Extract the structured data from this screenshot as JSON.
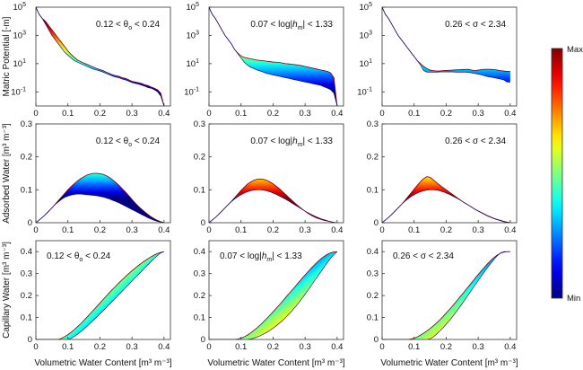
{
  "chart_data": {
    "type": "area",
    "layout": {
      "rows": 3,
      "cols": 3
    },
    "row_ylabels": [
      "Matric Potential [-m]",
      "Adsorbed Water [m³ m⁻³]",
      "Capillary Water [m³ m⁻³]"
    ],
    "col_annotations": [
      "0.12 < θo < 0.24",
      "0.07 < log|hm| < 1.33",
      "0.26 < σ < 2.34"
    ],
    "xlabel": "Volumetric Water Content [m³ m⁻³]",
    "xlim": [
      0,
      0.42
    ],
    "xticks": [
      "0",
      "0.1",
      "0.2",
      "0.3",
      "0.4"
    ],
    "row_ylims": [
      [
        0.01,
        100000
      ],
      [
        0,
        0.3
      ],
      [
        0,
        0.45
      ]
    ],
    "row_yscale": [
      "log",
      "linear",
      "linear"
    ],
    "row_yticks": [
      [
        "10^5",
        "10^3",
        "10^1",
        "10^-1"
      ],
      [
        "0",
        "0.1",
        "0.2",
        "0.3"
      ],
      [
        "0",
        "0.1",
        "0.2",
        "0.3",
        "0.4"
      ]
    ],
    "colorbar": {
      "max_label": "Max",
      "min_label": "Min",
      "colormap": "jet"
    },
    "x": [
      0.0,
      0.01,
      0.02,
      0.03,
      0.04,
      0.05,
      0.06,
      0.07,
      0.08,
      0.09,
      0.1,
      0.11,
      0.12,
      0.13,
      0.14,
      0.15,
      0.16,
      0.17,
      0.18,
      0.19,
      0.2,
      0.21,
      0.22,
      0.23,
      0.24,
      0.25,
      0.26,
      0.27,
      0.28,
      0.29,
      0.3,
      0.31,
      0.32,
      0.33,
      0.34,
      0.35,
      0.36,
      0.37,
      0.38,
      0.39,
      0.4
    ],
    "panels": [
      {
        "row": 0,
        "col": 0,
        "annotation_index": 0,
        "scale": "log",
        "curve_min": [
          100000,
          31623,
          15849,
          6310,
          2512,
          1000,
          501,
          251,
          126,
          63,
          40,
          25,
          16,
          12.6,
          10.0,
          8.0,
          6.3,
          5.0,
          4.0,
          3.5,
          3.0,
          2.5,
          2.0,
          1.6,
          1.3,
          1.1,
          1.0,
          0.8,
          0.7,
          0.56,
          0.45,
          0.4,
          0.35,
          0.3,
          0.25,
          0.2,
          0.18,
          0.14,
          0.1,
          0.05,
          0.01
        ],
        "curve_max": [
          100000,
          31623,
          15849,
          10000,
          5012,
          2512,
          1259,
          631,
          316,
          158,
          79,
          45,
          28,
          18,
          14,
          11,
          8.9,
          7.1,
          5.6,
          4.5,
          3.8,
          3.2,
          2.5,
          2.0,
          1.6,
          1.4,
          1.26,
          1.0,
          0.9,
          0.71,
          0.56,
          0.5,
          0.45,
          0.4,
          0.32,
          0.28,
          0.22,
          0.18,
          0.14,
          0.08,
          0.01
        ]
      },
      {
        "row": 0,
        "col": 1,
        "annotation_index": 1,
        "scale": "log",
        "curve_min": [
          100000,
          31623,
          15849,
          6310,
          2512,
          1000,
          501,
          251,
          100,
          50,
          25,
          12.6,
          7.9,
          5.6,
          4.5,
          3.5,
          3.0,
          2.5,
          2.0,
          1.78,
          1.58,
          1.41,
          1.26,
          1.12,
          1.0,
          0.89,
          0.79,
          0.71,
          0.63,
          0.56,
          0.5,
          0.45,
          0.4,
          0.35,
          0.32,
          0.28,
          0.22,
          0.18,
          0.14,
          0.08,
          0.01
        ],
        "curve_max": [
          100000,
          31623,
          15849,
          6310,
          2512,
          1000,
          501,
          251,
          100,
          56,
          35,
          28,
          25,
          22,
          20,
          18,
          17,
          16,
          15,
          14,
          13,
          12.6,
          12,
          11,
          10,
          9.5,
          8.9,
          8.4,
          7.9,
          7.1,
          6.3,
          5.6,
          5.0,
          4.5,
          4.0,
          3.5,
          3.2,
          2.8,
          2.2,
          1.0,
          0.01
        ]
      },
      {
        "row": 0,
        "col": 2,
        "annotation_index": 2,
        "scale": "log",
        "curve_min": [
          100000,
          31623,
          15849,
          6310,
          2512,
          1000,
          501,
          251,
          126,
          63,
          32,
          16,
          7.9,
          3.2,
          2.5,
          2.5,
          2.5,
          2.5,
          2.6,
          2.6,
          2.6,
          2.6,
          2.6,
          2.5,
          2.5,
          2.5,
          2.5,
          2.4,
          2.2,
          2.0,
          1.8,
          1.6,
          1.4,
          1.2,
          1.1,
          1.0,
          0.9,
          0.8,
          0.7,
          0.5,
          0.5
        ],
        "curve_max": [
          100000,
          31623,
          15849,
          6310,
          2512,
          1000,
          501,
          251,
          126,
          63,
          32,
          16,
          10,
          6.3,
          4.5,
          3.5,
          3.2,
          3.0,
          3.0,
          3.2,
          3.3,
          3.4,
          3.5,
          3.6,
          3.7,
          3.8,
          3.9,
          4.0,
          3.5,
          3.2,
          3.5,
          3.8,
          4.0,
          4.0,
          4.0,
          3.8,
          3.5,
          3.2,
          3.0,
          2.8,
          2.8
        ]
      },
      {
        "row": 1,
        "col": 0,
        "annotation_index": 0,
        "scale": "linear",
        "curve_min": [
          0,
          0.008,
          0.016,
          0.025,
          0.035,
          0.045,
          0.055,
          0.063,
          0.071,
          0.077,
          0.081,
          0.084,
          0.086,
          0.087,
          0.087,
          0.086,
          0.085,
          0.084,
          0.083,
          0.082,
          0.08,
          0.078,
          0.075,
          0.072,
          0.068,
          0.064,
          0.06,
          0.055,
          0.05,
          0.045,
          0.04,
          0.035,
          0.03,
          0.025,
          0.02,
          0.015,
          0.011,
          0.007,
          0.004,
          0.002,
          0
        ],
        "curve_max": [
          0,
          0.008,
          0.016,
          0.025,
          0.035,
          0.045,
          0.056,
          0.067,
          0.078,
          0.089,
          0.1,
          0.11,
          0.119,
          0.127,
          0.134,
          0.14,
          0.145,
          0.148,
          0.15,
          0.15,
          0.149,
          0.147,
          0.143,
          0.137,
          0.13,
          0.122,
          0.113,
          0.103,
          0.093,
          0.082,
          0.071,
          0.06,
          0.05,
          0.041,
          0.033,
          0.025,
          0.018,
          0.012,
          0.007,
          0.003,
          0
        ]
      },
      {
        "row": 1,
        "col": 1,
        "annotation_index": 1,
        "scale": "linear",
        "curve_min": [
          0,
          0.008,
          0.016,
          0.025,
          0.035,
          0.045,
          0.055,
          0.064,
          0.072,
          0.079,
          0.085,
          0.09,
          0.094,
          0.097,
          0.099,
          0.1,
          0.1,
          0.099,
          0.097,
          0.094,
          0.09,
          0.086,
          0.081,
          0.076,
          0.071,
          0.065,
          0.059,
          0.053,
          0.047,
          0.041,
          0.035,
          0.03,
          0.025,
          0.02,
          0.016,
          0.012,
          0.009,
          0.006,
          0.003,
          0.001,
          0
        ],
        "curve_max": [
          0,
          0.008,
          0.016,
          0.025,
          0.035,
          0.045,
          0.055,
          0.065,
          0.076,
          0.087,
          0.098,
          0.108,
          0.117,
          0.124,
          0.129,
          0.132,
          0.133,
          0.132,
          0.129,
          0.124,
          0.118,
          0.111,
          0.103,
          0.094,
          0.085,
          0.076,
          0.067,
          0.058,
          0.05,
          0.042,
          0.035,
          0.028,
          0.022,
          0.017,
          0.013,
          0.01,
          0.007,
          0.005,
          0.003,
          0.001,
          0
        ]
      },
      {
        "row": 1,
        "col": 2,
        "annotation_index": 2,
        "scale": "linear",
        "curve_min": [
          0,
          0.008,
          0.016,
          0.025,
          0.035,
          0.045,
          0.055,
          0.064,
          0.072,
          0.079,
          0.085,
          0.09,
          0.094,
          0.097,
          0.099,
          0.1,
          0.1,
          0.099,
          0.097,
          0.094,
          0.09,
          0.086,
          0.081,
          0.076,
          0.071,
          0.065,
          0.059,
          0.053,
          0.047,
          0.041,
          0.035,
          0.03,
          0.025,
          0.02,
          0.016,
          0.012,
          0.009,
          0.006,
          0.003,
          0.001,
          0
        ],
        "curve_max": [
          0,
          0.008,
          0.016,
          0.025,
          0.035,
          0.045,
          0.055,
          0.066,
          0.078,
          0.09,
          0.102,
          0.114,
          0.125,
          0.134,
          0.14,
          0.138,
          0.13,
          0.122,
          0.114,
          0.107,
          0.1,
          0.093,
          0.086,
          0.079,
          0.072,
          0.065,
          0.059,
          0.053,
          0.047,
          0.041,
          0.036,
          0.031,
          0.026,
          0.021,
          0.017,
          0.013,
          0.01,
          0.007,
          0.004,
          0.002,
          0
        ]
      },
      {
        "row": 2,
        "col": 0,
        "annotation_index": 0,
        "scale": "linear",
        "curve_min": [
          0,
          0,
          0,
          0,
          0,
          0,
          0,
          0,
          0,
          0,
          0,
          0.005,
          0.014,
          0.024,
          0.035,
          0.047,
          0.06,
          0.074,
          0.088,
          0.102,
          0.117,
          0.131,
          0.146,
          0.161,
          0.176,
          0.191,
          0.206,
          0.221,
          0.236,
          0.251,
          0.266,
          0.281,
          0.296,
          0.311,
          0.326,
          0.341,
          0.356,
          0.37,
          0.383,
          0.394,
          0.4
        ],
        "curve_max": [
          0,
          0,
          0,
          0,
          0,
          0,
          0,
          0,
          0.005,
          0.013,
          0.022,
          0.033,
          0.045,
          0.058,
          0.072,
          0.087,
          0.102,
          0.118,
          0.134,
          0.15,
          0.166,
          0.182,
          0.198,
          0.214,
          0.229,
          0.244,
          0.259,
          0.273,
          0.287,
          0.3,
          0.313,
          0.325,
          0.337,
          0.348,
          0.358,
          0.368,
          0.377,
          0.385,
          0.392,
          0.397,
          0.4
        ]
      },
      {
        "row": 2,
        "col": 1,
        "annotation_index": 1,
        "scale": "linear",
        "curve_min": [
          0,
          0,
          0,
          0,
          0,
          0,
          0,
          0,
          0,
          0,
          0,
          0,
          0,
          0.002,
          0.006,
          0.011,
          0.017,
          0.024,
          0.032,
          0.041,
          0.051,
          0.062,
          0.074,
          0.087,
          0.101,
          0.116,
          0.132,
          0.149,
          0.167,
          0.186,
          0.206,
          0.226,
          0.247,
          0.268,
          0.289,
          0.31,
          0.331,
          0.351,
          0.37,
          0.387,
          0.4
        ],
        "curve_max": [
          0,
          0,
          0,
          0,
          0,
          0,
          0,
          0,
          0,
          0.002,
          0.006,
          0.012,
          0.02,
          0.03,
          0.041,
          0.053,
          0.066,
          0.08,
          0.095,
          0.11,
          0.126,
          0.142,
          0.158,
          0.175,
          0.192,
          0.209,
          0.226,
          0.243,
          0.26,
          0.277,
          0.294,
          0.31,
          0.326,
          0.341,
          0.355,
          0.368,
          0.379,
          0.388,
          0.395,
          0.399,
          0.4
        ]
      },
      {
        "row": 2,
        "col": 2,
        "annotation_index": 2,
        "scale": "linear",
        "curve_min": [
          0,
          0,
          0,
          0,
          0,
          0,
          0,
          0,
          0,
          0,
          0,
          0,
          0,
          0,
          0,
          0.003,
          0.012,
          0.024,
          0.038,
          0.053,
          0.069,
          0.086,
          0.104,
          0.123,
          0.143,
          0.163,
          0.184,
          0.205,
          0.226,
          0.247,
          0.268,
          0.289,
          0.309,
          0.329,
          0.348,
          0.366,
          0.382,
          0.394,
          0.4,
          0.4,
          0.4
        ],
        "curve_max": [
          0,
          0,
          0,
          0,
          0,
          0,
          0,
          0,
          0,
          0.002,
          0.006,
          0.012,
          0.02,
          0.029,
          0.039,
          0.05,
          0.062,
          0.075,
          0.089,
          0.104,
          0.12,
          0.136,
          0.153,
          0.17,
          0.188,
          0.206,
          0.224,
          0.242,
          0.26,
          0.278,
          0.296,
          0.313,
          0.33,
          0.346,
          0.361,
          0.374,
          0.385,
          0.393,
          0.398,
          0.4,
          0.4
        ]
      }
    ]
  }
}
